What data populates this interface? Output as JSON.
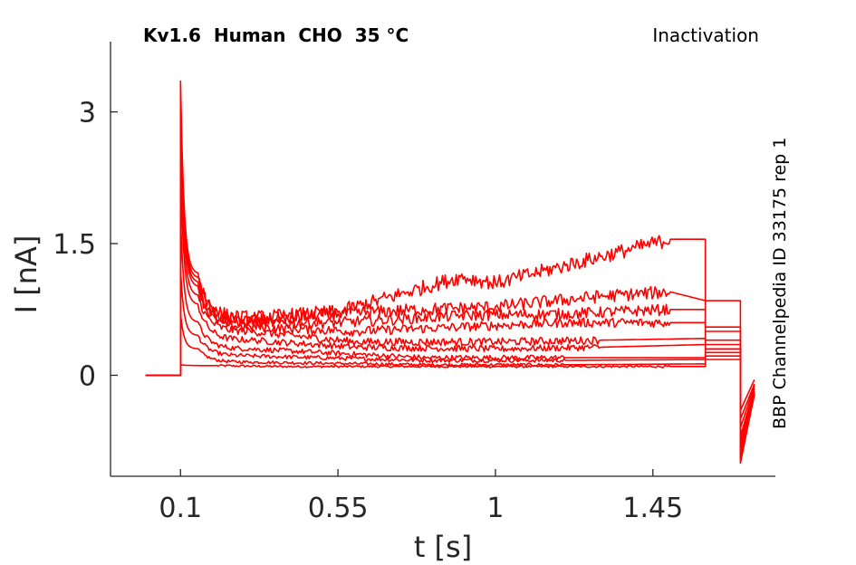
{
  "chart_data": {
    "type": "line",
    "title_left": "Kv1.6  Human  CHO  35 °C",
    "title_right": "Inactivation",
    "side_label": "BBP Channelpedia ID 33175 rep 1",
    "xlabel": "t [s]",
    "ylabel": "I [nA]",
    "xlim": [
      -0.1,
      1.8
    ],
    "ylim": [
      -1.15,
      3.8
    ],
    "xticks": [
      0.1,
      0.55,
      1,
      1.45
    ],
    "xtick_labels": [
      "0.1",
      "0.55",
      "1",
      "1.45"
    ],
    "yticks": [
      0,
      1.5,
      3
    ],
    "ytick_labels": [
      "0",
      "1.5",
      "3"
    ],
    "line_color": "#ff0000",
    "grid": false,
    "series": [
      {
        "values": [
          [
            0.0,
            0.0
          ],
          [
            0.1,
            0.0
          ],
          [
            0.1,
            0.12
          ],
          [
            0.2,
            0.11
          ],
          [
            0.4,
            0.1
          ],
          [
            0.8,
            0.1
          ],
          [
            1.2,
            0.1
          ],
          [
            1.5,
            0.1
          ],
          [
            1.6,
            0.1
          ],
          [
            1.6,
            0.18
          ],
          [
            1.7,
            0.18
          ],
          [
            1.7,
            -0.4
          ],
          [
            1.74,
            -0.05
          ]
        ]
      },
      {
        "values": [
          [
            0.0,
            0.0
          ],
          [
            0.1,
            0.0
          ],
          [
            0.1,
            0.7
          ],
          [
            0.15,
            0.3
          ],
          [
            0.3,
            0.15
          ],
          [
            0.8,
            0.12
          ],
          [
            1.2,
            0.12
          ],
          [
            1.6,
            0.13
          ],
          [
            1.6,
            0.22
          ],
          [
            1.7,
            0.22
          ],
          [
            1.7,
            -0.5
          ],
          [
            1.74,
            -0.1
          ]
        ]
      },
      {
        "values": [
          [
            0.0,
            0.0
          ],
          [
            0.1,
            0.0
          ],
          [
            0.1,
            1.2
          ],
          [
            0.15,
            0.45
          ],
          [
            0.3,
            0.22
          ],
          [
            0.8,
            0.17
          ],
          [
            1.2,
            0.17
          ],
          [
            1.6,
            0.18
          ],
          [
            1.6,
            0.26
          ],
          [
            1.7,
            0.26
          ],
          [
            1.7,
            -0.6
          ],
          [
            1.74,
            -0.12
          ]
        ]
      },
      {
        "values": [
          [
            0.0,
            0.0
          ],
          [
            0.1,
            0.0
          ],
          [
            0.1,
            1.8
          ],
          [
            0.15,
            0.6
          ],
          [
            0.3,
            0.3
          ],
          [
            0.8,
            0.2
          ],
          [
            1.2,
            0.2
          ],
          [
            1.6,
            0.2
          ],
          [
            1.6,
            0.3
          ],
          [
            1.7,
            0.3
          ],
          [
            1.7,
            -0.7
          ],
          [
            1.74,
            -0.15
          ]
        ]
      },
      {
        "values": [
          [
            0.0,
            0.0
          ],
          [
            0.1,
            0.0
          ],
          [
            0.1,
            2.3
          ],
          [
            0.15,
            0.8
          ],
          [
            0.3,
            0.4
          ],
          [
            0.6,
            0.32
          ],
          [
            1.0,
            0.3
          ],
          [
            1.3,
            0.32
          ],
          [
            1.6,
            0.35
          ],
          [
            1.6,
            0.35
          ],
          [
            1.7,
            0.35
          ],
          [
            1.7,
            -0.75
          ],
          [
            1.74,
            -0.18
          ]
        ]
      },
      {
        "values": [
          [
            0.0,
            0.0
          ],
          [
            0.1,
            0.0
          ],
          [
            0.1,
            2.7
          ],
          [
            0.15,
            0.9
          ],
          [
            0.3,
            0.5
          ],
          [
            0.6,
            0.38
          ],
          [
            1.0,
            0.38
          ],
          [
            1.3,
            0.4
          ],
          [
            1.6,
            0.42
          ],
          [
            1.6,
            0.4
          ],
          [
            1.7,
            0.4
          ],
          [
            1.7,
            -0.8
          ],
          [
            1.74,
            -0.2
          ]
        ]
      },
      {
        "values": [
          [
            0.0,
            0.0
          ],
          [
            0.1,
            0.0
          ],
          [
            0.1,
            3.0
          ],
          [
            0.15,
            1.0
          ],
          [
            0.3,
            0.55
          ],
          [
            0.6,
            0.5
          ],
          [
            0.9,
            0.55
          ],
          [
            1.2,
            0.6
          ],
          [
            1.5,
            0.6
          ],
          [
            1.6,
            0.6
          ],
          [
            1.6,
            0.55
          ],
          [
            1.7,
            0.55
          ],
          [
            1.7,
            -0.85
          ],
          [
            1.74,
            -0.2
          ]
        ]
      },
      {
        "values": [
          [
            0.0,
            0.0
          ],
          [
            0.1,
            0.0
          ],
          [
            0.1,
            3.1
          ],
          [
            0.15,
            1.05
          ],
          [
            0.3,
            0.6
          ],
          [
            0.55,
            0.6
          ],
          [
            0.9,
            0.68
          ],
          [
            1.2,
            0.7
          ],
          [
            1.5,
            0.75
          ],
          [
            1.6,
            0.75
          ],
          [
            1.6,
            0.5
          ],
          [
            1.7,
            0.5
          ],
          [
            1.7,
            -0.9
          ],
          [
            1.74,
            -0.22
          ]
        ]
      },
      {
        "values": [
          [
            0.0,
            0.0
          ],
          [
            0.1,
            0.0
          ],
          [
            0.1,
            3.2
          ],
          [
            0.15,
            1.1
          ],
          [
            0.3,
            0.62
          ],
          [
            0.55,
            0.7
          ],
          [
            0.8,
            0.75
          ],
          [
            1.0,
            0.78
          ],
          [
            1.3,
            0.9
          ],
          [
            1.5,
            0.95
          ],
          [
            1.6,
            0.85
          ],
          [
            1.7,
            0.85
          ],
          [
            1.7,
            -0.95
          ],
          [
            1.74,
            -0.22
          ]
        ]
      },
      {
        "values": [
          [
            0.0,
            0.0
          ],
          [
            0.1,
            0.0
          ],
          [
            0.1,
            3.35
          ],
          [
            0.15,
            1.15
          ],
          [
            0.3,
            0.65
          ],
          [
            0.55,
            0.72
          ],
          [
            0.75,
            0.95
          ],
          [
            0.9,
            1.12
          ],
          [
            1.0,
            1.05
          ],
          [
            1.2,
            1.25
          ],
          [
            1.4,
            1.45
          ],
          [
            1.5,
            1.55
          ],
          [
            1.6,
            1.55
          ],
          [
            1.6,
            0.3
          ],
          [
            1.7,
            0.3
          ],
          [
            1.7,
            -1.0
          ],
          [
            1.74,
            -0.22
          ]
        ]
      }
    ]
  }
}
